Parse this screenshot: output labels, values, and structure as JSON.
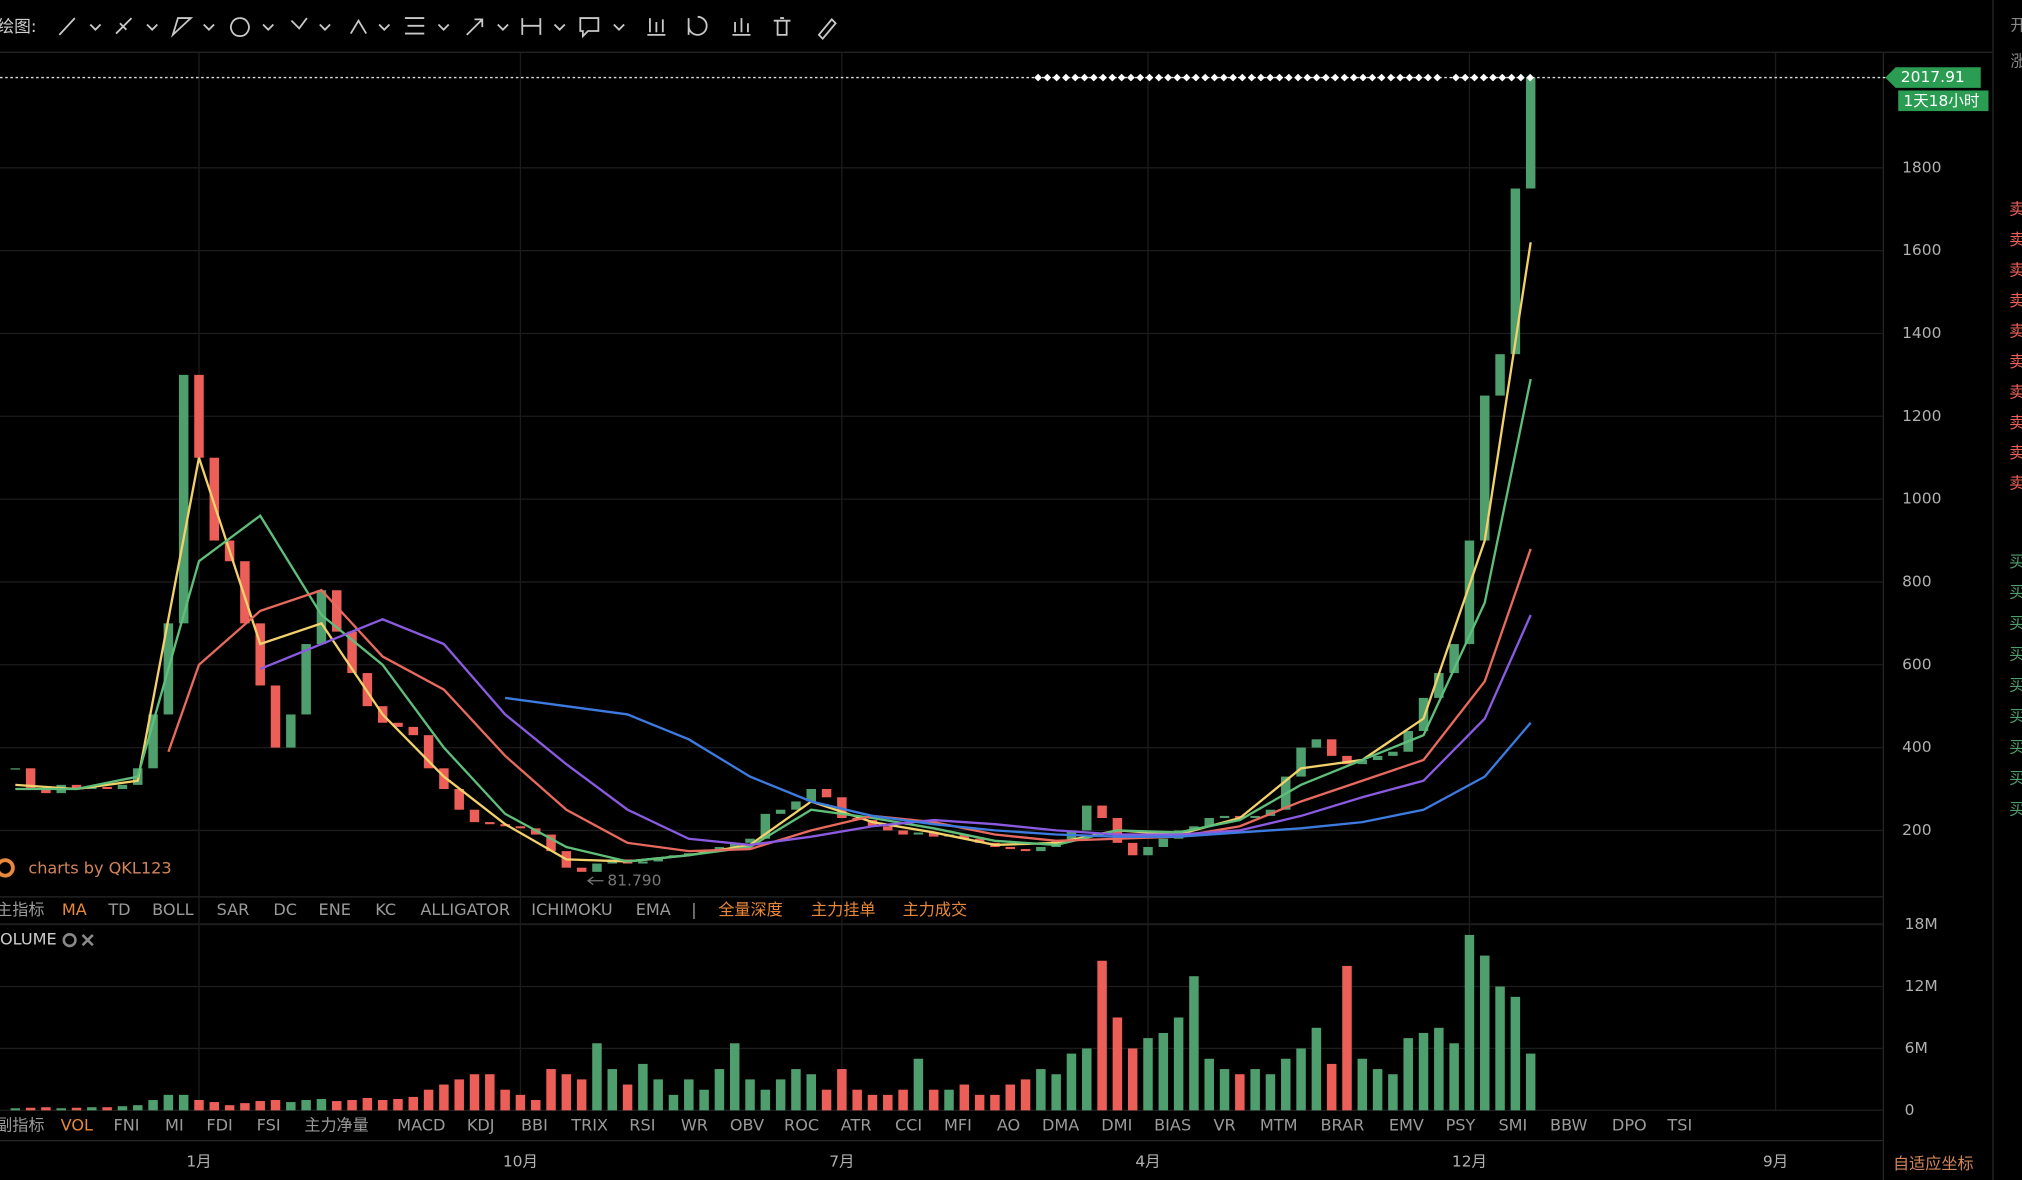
{
  "toolbar": {
    "label": "绘图:"
  },
  "main_indicators": [
    "主指标",
    "MA",
    "TD",
    "BOLL",
    "SAR",
    "DC",
    "ENE",
    "KC",
    "ALLIGATOR",
    "ICHIMOKU",
    "EMA",
    "|",
    "全量深度",
    "主力挂单",
    "主力成交"
  ],
  "sub_indicators": [
    "副指标",
    "VOL",
    "FNI",
    "MI",
    "FDI",
    "FSI",
    "主力净量",
    "MACD",
    "KDJ",
    "BBI",
    "TRIX",
    "RSI",
    "WR",
    "OBV",
    "ROC",
    "ATR",
    "CCI",
    "MFI",
    "AO",
    "DMA",
    "DMI",
    "BIAS",
    "VR",
    "MTM",
    "BRAR",
    "EMV",
    "PSY",
    "SMI",
    "BBW",
    "DPO",
    "TSI"
  ],
  "watermark": "charts by QKL123",
  "volume_label": "OLUME",
  "low_label": "81.790",
  "countdown": "1天18小时",
  "scale_button": "自适应坐标",
  "side_panel": {
    "top": [
      "开",
      "涨"
    ],
    "sell": [
      "卖",
      "卖",
      "卖",
      "卖",
      "卖",
      "卖",
      "卖",
      "卖",
      "卖",
      "卖"
    ],
    "buy": [
      "买",
      "买",
      "买",
      "买",
      "买",
      "买",
      "买",
      "买",
      "买"
    ]
  },
  "chart_data": {
    "type": "candlestick",
    "up_color": "#4f9e6e",
    "down_color": "#ec5f58",
    "xlim": [
      -1,
      122
    ],
    "xticks": [
      {
        "value": 12,
        "label": "1月"
      },
      {
        "value": 33,
        "label": "10月"
      },
      {
        "value": 54,
        "label": "7月"
      },
      {
        "value": 74,
        "label": "4月"
      },
      {
        "value": 95,
        "label": "12月"
      },
      {
        "value": 115,
        "label": "9月"
      }
    ],
    "ylim": [
      41,
      2065
    ],
    "yticks": [
      200,
      400,
      600,
      800,
      1000,
      1200,
      1400,
      1600,
      1800
    ],
    "close": [
      350,
      300,
      290,
      310,
      300,
      305,
      300,
      310,
      350,
      480,
      700,
      1300,
      1100,
      900,
      850,
      700,
      550,
      400,
      480,
      650,
      780,
      680,
      580,
      500,
      460,
      450,
      430,
      350,
      300,
      250,
      220,
      215,
      210,
      205,
      190,
      150,
      110,
      100,
      120,
      130,
      120,
      125,
      135,
      140,
      145,
      150,
      160,
      170,
      180,
      240,
      250,
      270,
      300,
      280,
      230,
      225,
      210,
      200,
      190,
      195,
      185,
      190,
      180,
      170,
      160,
      155,
      150,
      160,
      175,
      200,
      260,
      230,
      170,
      140,
      160,
      180,
      200,
      210,
      230,
      235,
      230,
      235,
      250,
      330,
      400,
      420,
      380,
      360,
      370,
      380,
      390,
      440,
      520,
      580,
      650,
      900,
      1250,
      1350,
      1750,
      2017.91
    ],
    "ma_series": [
      {
        "color": "#f2d16b",
        "x": [
          0,
          4,
          8,
          12,
          16,
          20,
          24,
          28,
          32,
          36,
          40,
          44,
          48,
          52,
          56,
          60,
          64,
          68,
          72,
          76,
          80,
          84,
          88,
          92,
          96,
          99
        ],
        "values": [
          310,
          300,
          320,
          1100,
          650,
          700,
          480,
          330,
          215,
          130,
          125,
          140,
          165,
          270,
          220,
          195,
          165,
          170,
          200,
          190,
          230,
          350,
          370,
          470,
          900,
          1620
        ]
      },
      {
        "color": "#5fbf7a",
        "x": [
          0,
          4,
          8,
          12,
          16,
          20,
          24,
          28,
          32,
          36,
          40,
          44,
          48,
          52,
          56,
          60,
          64,
          68,
          72,
          76,
          80,
          84,
          88,
          92,
          96,
          99
        ],
        "values": [
          300,
          300,
          330,
          850,
          960,
          720,
          600,
          400,
          240,
          160,
          125,
          140,
          160,
          250,
          230,
          205,
          175,
          165,
          200,
          195,
          225,
          310,
          370,
          430,
          750,
          1290
        ]
      },
      {
        "color": "#e86a5e",
        "x": [
          10,
          12,
          16,
          20,
          24,
          28,
          32,
          36,
          40,
          44,
          48,
          52,
          56,
          60,
          64,
          68,
          72,
          76,
          80,
          84,
          88,
          92,
          96,
          99
        ],
        "values": [
          390,
          600,
          730,
          780,
          620,
          540,
          380,
          250,
          170,
          150,
          155,
          200,
          235,
          220,
          190,
          175,
          180,
          185,
          210,
          270,
          320,
          370,
          560,
          880
        ]
      },
      {
        "color": "#8a5be0",
        "x": [
          16,
          20,
          24,
          28,
          32,
          36,
          40,
          44,
          48,
          52,
          56,
          60,
          64,
          68,
          72,
          76,
          80,
          84,
          88,
          92,
          96,
          99
        ],
        "values": [
          590,
          650,
          710,
          650,
          480,
          360,
          250,
          180,
          165,
          185,
          210,
          225,
          215,
          200,
          190,
          190,
          200,
          235,
          280,
          320,
          470,
          720
        ]
      },
      {
        "color": "#3d7be0",
        "x": [
          32,
          36,
          40,
          44,
          48,
          52,
          56,
          60,
          64,
          68,
          72,
          76,
          80,
          84,
          88,
          92,
          96,
          99
        ],
        "values": [
          520,
          500,
          480,
          420,
          330,
          270,
          235,
          215,
          200,
          190,
          185,
          185,
          195,
          205,
          220,
          250,
          330,
          460
        ]
      }
    ],
    "volume": [
      200000,
      250000,
      300000,
      200000,
      250000,
      300000,
      300000,
      400000,
      500000,
      1000000,
      1500000,
      1500000,
      1000000,
      800000,
      500000,
      700000,
      900000,
      1000000,
      800000,
      1000000,
      1100000,
      900000,
      1000000,
      1200000,
      1000000,
      1100000,
      1300000,
      2000000,
      2500000,
      3000000,
      3500000,
      3500000,
      2000000,
      1500000,
      1000000,
      4000000,
      3500000,
      3000000,
      6500000,
      4000000,
      2500000,
      4500000,
      3000000,
      1500000,
      3000000,
      2000000,
      4000000,
      6500000,
      3000000,
      2000000,
      3000000,
      4000000,
      3500000,
      2000000,
      4000000,
      2000000,
      1500000,
      1500000,
      2000000,
      5000000,
      2000000,
      2000000,
      2500000,
      1500000,
      1500000,
      2500000,
      3000000,
      4000000,
      3500000,
      5500000,
      6000000,
      14500000,
      9000000,
      6000000,
      7000000,
      7500000,
      9000000,
      13000000,
      5000000,
      4000000,
      3500000,
      4000000,
      3500000,
      5000000,
      6000000,
      8000000,
      4500000,
      14000000,
      5000000,
      4000000,
      3500000,
      7000000,
      7500000,
      8000000,
      6500000,
      17000000,
      15000000,
      12000000,
      11000000,
      5500000
    ],
    "vlim": [
      0,
      18000000
    ],
    "vticks": [
      {
        "value": 0,
        "label": "0"
      },
      {
        "value": 6000000,
        "label": "6M"
      },
      {
        "value": 12000000,
        "label": "12M"
      },
      {
        "value": 18000000,
        "label": "18M"
      }
    ],
    "grid": true
  }
}
